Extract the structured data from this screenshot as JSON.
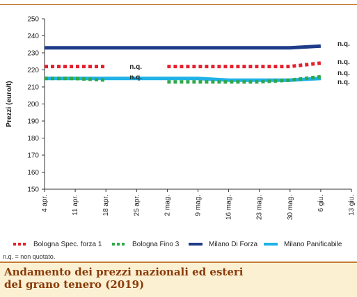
{
  "chart_data": {
    "type": "line",
    "ylabel": "Prezzi (euro/t)",
    "xlabel": "",
    "ylim": [
      150,
      250
    ],
    "yticks": [
      150,
      160,
      170,
      180,
      190,
      200,
      210,
      220,
      230,
      240,
      250
    ],
    "categories": [
      "4 apr.",
      "11 apr.",
      "18 apr.",
      "25 apr.",
      "2 mag.",
      "9 mag.",
      "16 mag.",
      "23 mag.",
      "30 mag.",
      "6 giu.",
      "13 giu."
    ],
    "grid": false,
    "legend_position": "bottom",
    "series": [
      {
        "name": "Bologna Spec. forza 1",
        "style": "dotted",
        "color": "#e5202e",
        "values": [
          222,
          222,
          222,
          null,
          222,
          222,
          222,
          222,
          222,
          224,
          null
        ],
        "end_label": "n.q."
      },
      {
        "name": "Bologna Fino 3",
        "style": "dotted",
        "color": "#2ea84a",
        "values": [
          215,
          215,
          214,
          null,
          213,
          213,
          213,
          213,
          214,
          216,
          null
        ],
        "end_label": "n.q."
      },
      {
        "name": "Milano Di Forza",
        "style": "solid",
        "color": "#1f3c88",
        "values": [
          233,
          233,
          233,
          233,
          233,
          233,
          233,
          233,
          233,
          234,
          null
        ],
        "end_label": "n.q."
      },
      {
        "name": "Milano Panificabile",
        "style": "solid",
        "color": "#1fb2e6",
        "values": [
          215,
          215,
          215,
          215,
          215,
          215,
          214,
          214,
          214,
          215,
          null
        ],
        "end_label": "n.q."
      }
    ],
    "gap_labels": [
      "n.q.",
      "n.q."
    ]
  },
  "note": "n.q. = non quotato.",
  "caption": {
    "line1": "Andamento dei prezzi nazionali ed esteri",
    "line2": "del grano tenero (2019)"
  }
}
